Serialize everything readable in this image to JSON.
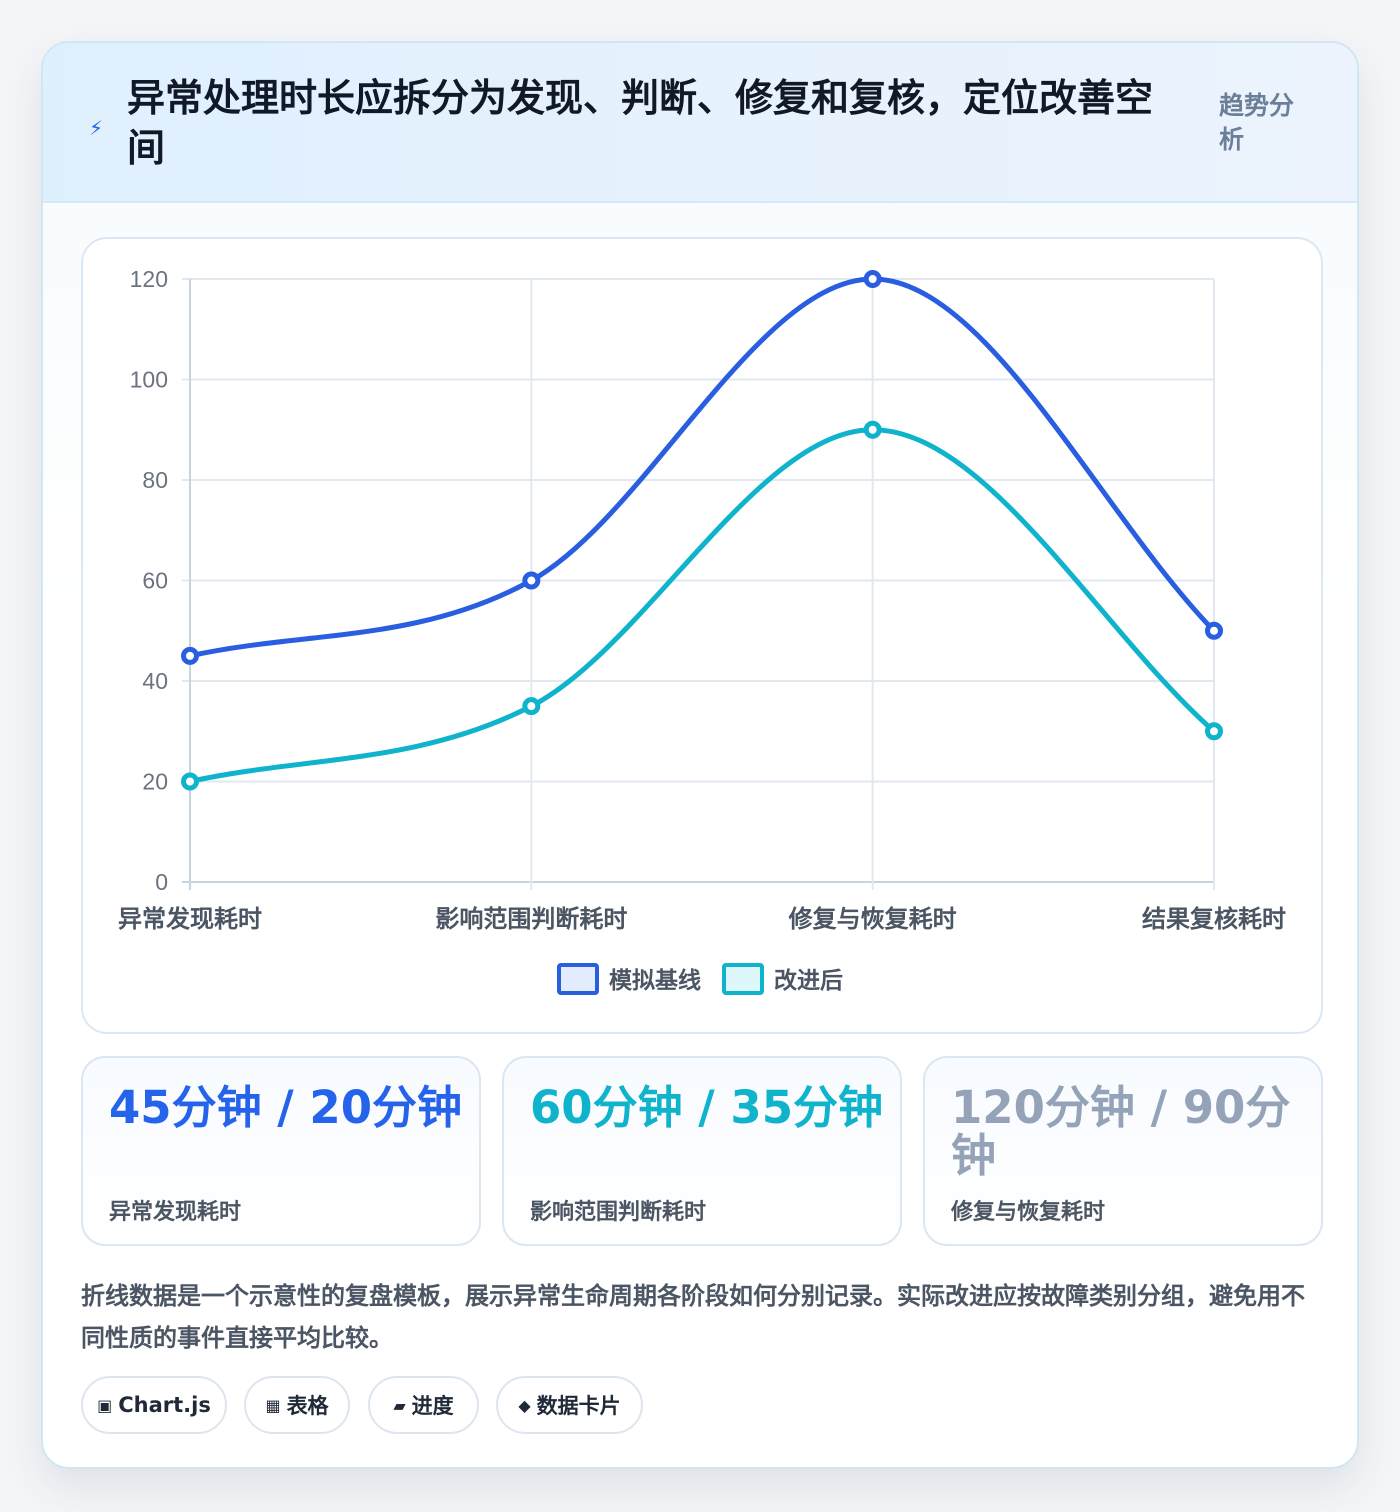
{
  "header": {
    "icon": "lightning-icon",
    "title": "异常处理时长应拆分为发现、判断、修复和复核，定位改善空间",
    "tag": "趋势分析"
  },
  "chart_data": {
    "type": "line",
    "categories": [
      "异常发现耗时",
      "影响范围判断耗时",
      "修复与恢复耗时",
      "结果复核耗时"
    ],
    "series": [
      {
        "name": "模拟基线",
        "values": [
          45,
          60,
          120,
          50
        ],
        "color": "#2a5ee0"
      },
      {
        "name": "改进后",
        "values": [
          20,
          35,
          90,
          30
        ],
        "color": "#0fb3cc"
      }
    ],
    "ylim": [
      0,
      120
    ],
    "yticks": [
      0,
      20,
      40,
      60,
      80,
      100,
      120
    ],
    "grid": true,
    "legend": "bottom"
  },
  "stats": [
    {
      "value": "45分钟 / 20分钟",
      "label": "异常发现耗时",
      "color": "#2563eb"
    },
    {
      "value": "60分钟 / 35分钟",
      "label": "影响范围判断耗时",
      "color": "#0fb3cc"
    },
    {
      "value": "120分钟 / 90分钟",
      "label": "修复与恢复耗时",
      "color": "#94a3b8"
    }
  ],
  "description": "折线数据是一个示意性的复盘模板，展示异常生命周期各阶段如何分别记录。实际改进应按故障类别分组，避免用不同性质的事件直接平均比较。",
  "tags": [
    {
      "icon": "square-icon",
      "label": "Chart.js"
    },
    {
      "icon": "table-icon",
      "label": "表格"
    },
    {
      "icon": "progress-icon",
      "label": "进度"
    },
    {
      "icon": "diamond-icon",
      "label": "数据卡片"
    }
  ]
}
